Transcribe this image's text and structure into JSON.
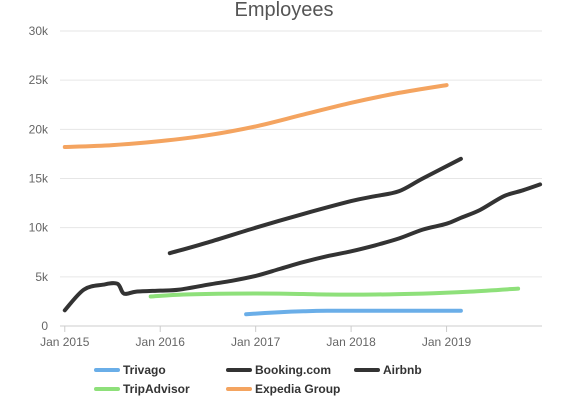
{
  "chart_data": {
    "type": "line",
    "title": "Employees",
    "xlabel": "",
    "ylabel": "",
    "ylim": [
      0,
      30000
    ],
    "y_ticks": [
      {
        "value": 0,
        "label": "0"
      },
      {
        "value": 5000,
        "label": "5k"
      },
      {
        "value": 10000,
        "label": "10k"
      },
      {
        "value": 15000,
        "label": "15k"
      },
      {
        "value": 20000,
        "label": "20k"
      },
      {
        "value": 25000,
        "label": "25k"
      },
      {
        "value": 30000,
        "label": "30k"
      }
    ],
    "xlim": [
      2014.95,
      2020.0
    ],
    "x_ticks": [
      {
        "value": 2015.0,
        "label": "Jan 2015"
      },
      {
        "value": 2016.0,
        "label": "Jan 2016"
      },
      {
        "value": 2017.0,
        "label": "Jan 2017"
      },
      {
        "value": 2018.0,
        "label": "Jan 2018"
      },
      {
        "value": 2019.0,
        "label": "Jan 2019"
      }
    ],
    "grid": true,
    "legend_position": "bottom",
    "series": [
      {
        "name": "Expedia Group",
        "color": "#f4a460",
        "points": [
          [
            2015.0,
            18200
          ],
          [
            2015.5,
            18400
          ],
          [
            2016.0,
            18800
          ],
          [
            2016.5,
            19400
          ],
          [
            2017.0,
            20300
          ],
          [
            2017.5,
            21500
          ],
          [
            2018.0,
            22700
          ],
          [
            2018.5,
            23700
          ],
          [
            2019.0,
            24500
          ]
        ]
      },
      {
        "name": "Booking.com",
        "color": "#333333",
        "points": [
          [
            2016.1,
            7400
          ],
          [
            2016.5,
            8500
          ],
          [
            2017.0,
            10000
          ],
          [
            2017.5,
            11400
          ],
          [
            2018.0,
            12700
          ],
          [
            2018.25,
            13200
          ],
          [
            2018.5,
            13700
          ],
          [
            2018.75,
            15000
          ],
          [
            2019.15,
            17000
          ]
        ]
      },
      {
        "name": "Airbnb",
        "color": "#333333",
        "points": [
          [
            2015.0,
            1600
          ],
          [
            2015.2,
            3700
          ],
          [
            2015.4,
            4200
          ],
          [
            2015.55,
            4300
          ],
          [
            2015.62,
            3300
          ],
          [
            2015.75,
            3500
          ],
          [
            2016.0,
            3600
          ],
          [
            2016.2,
            3700
          ],
          [
            2016.5,
            4200
          ],
          [
            2016.75,
            4600
          ],
          [
            2017.0,
            5100
          ],
          [
            2017.25,
            5800
          ],
          [
            2017.5,
            6500
          ],
          [
            2017.75,
            7100
          ],
          [
            2018.0,
            7600
          ],
          [
            2018.25,
            8200
          ],
          [
            2018.5,
            8900
          ],
          [
            2018.75,
            9800
          ],
          [
            2019.0,
            10400
          ],
          [
            2019.15,
            11000
          ],
          [
            2019.35,
            11800
          ],
          [
            2019.6,
            13200
          ],
          [
            2019.8,
            13800
          ],
          [
            2019.98,
            14400
          ]
        ]
      },
      {
        "name": "TripAdvisor",
        "color": "#8ee07a",
        "points": [
          [
            2015.9,
            3000
          ],
          [
            2016.25,
            3200
          ],
          [
            2016.75,
            3300
          ],
          [
            2017.25,
            3300
          ],
          [
            2017.75,
            3200
          ],
          [
            2018.25,
            3200
          ],
          [
            2018.75,
            3300
          ],
          [
            2019.25,
            3500
          ],
          [
            2019.75,
            3800
          ]
        ]
      },
      {
        "name": "Trivago",
        "color": "#6aaee8",
        "points": [
          [
            2016.9,
            1200
          ],
          [
            2017.25,
            1400
          ],
          [
            2017.5,
            1500
          ],
          [
            2017.75,
            1550
          ],
          [
            2018.25,
            1550
          ],
          [
            2018.75,
            1550
          ],
          [
            2019.15,
            1550
          ]
        ]
      }
    ],
    "legend": [
      {
        "name": "Trivago",
        "color": "#6aaee8"
      },
      {
        "name": "Booking.com",
        "color": "#333333"
      },
      {
        "name": "Airbnb",
        "color": "#333333"
      },
      {
        "name": "TripAdvisor",
        "color": "#8ee07a"
      },
      {
        "name": "Expedia Group",
        "color": "#f4a460"
      }
    ]
  }
}
